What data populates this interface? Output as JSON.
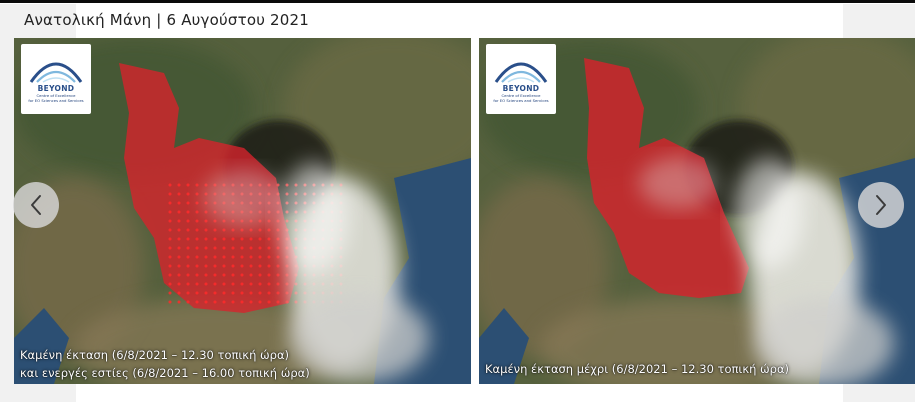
{
  "slide_title": "Ανατολική Μάνη | 6 Αυγούστου 2021",
  "logo": {
    "name": "BEYOND",
    "subtitle_line1": "Centre of Excellence",
    "subtitle_line2": "for EO Sciences and Services"
  },
  "left_image": {
    "caption_line1": "Καμένη έκταση (6/8/2021 – 12.30 τοπική ώρα)",
    "caption_line2": "και ενεργές εστίες (6/8/2021 – 16.00 τοπική ώρα)"
  },
  "right_image": {
    "caption": "Καμένη έκταση μέχρι (6/8/2021 – 12.30 τοπική ώρα)"
  },
  "navigation": {
    "prev_icon": "chevron-left-icon",
    "next_icon": "chevron-right-icon"
  },
  "colors": {
    "burned_area": "#d8222c",
    "active_fire": "#ff1a1a",
    "sea": "#2c4f73",
    "logo_blue": "#2a4f8a"
  }
}
